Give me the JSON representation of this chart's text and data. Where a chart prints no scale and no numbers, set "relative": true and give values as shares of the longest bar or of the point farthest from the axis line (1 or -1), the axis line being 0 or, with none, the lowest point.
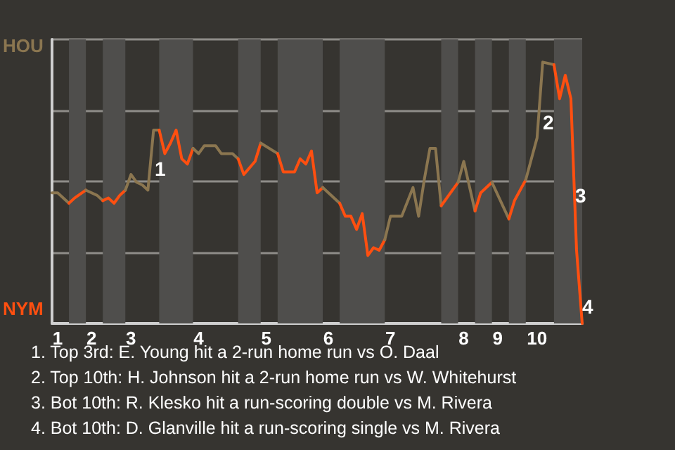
{
  "chart_data": {
    "type": "line",
    "relative": true,
    "categories": [
      null,
      "1",
      null,
      null,
      null,
      null,
      null,
      "2",
      null,
      null,
      null,
      null,
      null,
      null,
      "3",
      null,
      null,
      null,
      null,
      null,
      null,
      null,
      null,
      null,
      null,
      null,
      "4",
      null,
      null,
      null,
      null,
      null,
      null,
      null,
      null,
      null,
      null,
      null,
      "5",
      null,
      null,
      null,
      null,
      null,
      null,
      null,
      null,
      null,
      null,
      "6",
      null,
      null,
      null,
      null,
      null,
      null,
      null,
      null,
      null,
      null,
      "7",
      null,
      null,
      null,
      null,
      null,
      null,
      null,
      null,
      null,
      null,
      null,
      null,
      "8",
      null,
      null,
      null,
      null,
      null,
      "9",
      null,
      null,
      null,
      null,
      null,
      null,
      "10",
      null,
      null,
      null,
      null,
      null,
      null,
      null,
      null
    ],
    "grid": "y",
    "marker": "none",
    "series": [
      {
        "color": "#8b7650",
        "values": [
          0.5,
          0.5,
          null,
          0.46,
          null,
          null,
          null,
          null,
          null,
          null,
          null,
          null,
          null,
          null,
          null,
          null,
          null,
          null,
          null,
          null,
          null,
          null,
          null,
          null,
          null,
          null,
          null,
          null,
          null,
          null,
          null,
          null,
          null,
          null,
          null,
          null,
          null,
          null,
          null,
          null,
          null,
          null,
          null,
          null,
          null,
          null,
          null,
          null,
          null,
          null,
          null,
          null,
          null,
          null,
          null,
          null,
          null,
          null,
          null,
          null,
          null,
          null,
          null,
          null,
          null,
          null,
          null,
          null,
          null,
          null,
          null,
          null,
          null,
          null,
          null,
          null,
          null,
          null,
          null,
          null,
          null,
          null,
          null,
          null,
          null,
          null,
          null,
          null,
          null,
          null,
          null,
          null,
          null,
          null,
          null
        ]
      },
      {
        "color": "#ff4f10",
        "values": [
          null,
          null,
          null,
          0.46,
          0.48,
          null,
          0.51,
          null,
          null,
          null,
          null,
          null,
          null,
          null,
          null,
          null,
          null,
          null,
          null,
          null,
          null,
          null,
          null,
          null,
          null,
          null,
          null,
          null,
          null,
          null,
          null,
          null,
          null,
          null,
          null,
          null,
          null,
          null,
          null,
          null,
          null,
          null,
          null,
          null,
          null,
          null,
          null,
          null,
          null,
          null,
          null,
          null,
          null,
          null,
          null,
          null,
          null,
          null,
          null,
          null,
          null,
          null,
          null,
          null,
          null,
          null,
          null,
          null,
          null,
          null,
          null,
          null,
          null,
          null,
          null,
          null,
          null,
          null,
          null,
          null,
          null,
          null,
          null,
          null,
          null,
          null,
          null,
          null,
          null,
          null,
          null,
          null,
          null,
          null,
          null
        ]
      },
      {
        "color": "#8b7650",
        "values": [
          null,
          null,
          null,
          null,
          null,
          null,
          0.51,
          null,
          0.49,
          0.47,
          null,
          null,
          null,
          null,
          null,
          null,
          null,
          null,
          null,
          null,
          null,
          null,
          null,
          null,
          null,
          null,
          null,
          null,
          null,
          null,
          null,
          null,
          null,
          null,
          null,
          null,
          null,
          null,
          null,
          null,
          null,
          null,
          null,
          null,
          null,
          null,
          null,
          null,
          null,
          null,
          null,
          null,
          null,
          null,
          null,
          null,
          null,
          null,
          null,
          null,
          null,
          null,
          null,
          null,
          null,
          null,
          null,
          null,
          null,
          null,
          null,
          null,
          null,
          null,
          null,
          null,
          null,
          null,
          null,
          null,
          null,
          null,
          null,
          null,
          null,
          null,
          null,
          null,
          null,
          null,
          null,
          null,
          null,
          null,
          null
        ]
      },
      {
        "color": "#ff4f10",
        "values": [
          null,
          null,
          null,
          null,
          null,
          null,
          null,
          null,
          null,
          0.47,
          0.48,
          0.46,
          0.49,
          0.51,
          null,
          null,
          null,
          null,
          null,
          null,
          null,
          null,
          null,
          null,
          null,
          null,
          null,
          null,
          null,
          null,
          null,
          null,
          null,
          null,
          null,
          null,
          null,
          null,
          null,
          null,
          null,
          null,
          null,
          null,
          null,
          null,
          null,
          null,
          null,
          null,
          null,
          null,
          null,
          null,
          null,
          null,
          null,
          null,
          null,
          null,
          null,
          null,
          null,
          null,
          null,
          null,
          null,
          null,
          null,
          null,
          null,
          null,
          null,
          null,
          null,
          null,
          null,
          null,
          null,
          null,
          null,
          null,
          null,
          null,
          null,
          null,
          null,
          null,
          null,
          null,
          null,
          null,
          null,
          null,
          null
        ]
      },
      {
        "color": "#8b7650",
        "values": [
          null,
          null,
          null,
          null,
          null,
          null,
          null,
          null,
          null,
          null,
          null,
          null,
          null,
          0.51,
          0.57,
          0.54,
          0.53,
          0.51,
          0.74,
          0.74,
          null,
          null,
          null,
          null,
          null,
          null,
          null,
          null,
          null,
          null,
          null,
          null,
          null,
          null,
          null,
          null,
          null,
          null,
          null,
          null,
          null,
          null,
          null,
          null,
          null,
          null,
          null,
          null,
          null,
          null,
          null,
          null,
          null,
          null,
          null,
          null,
          null,
          null,
          null,
          null,
          null,
          null,
          null,
          null,
          null,
          null,
          null,
          null,
          null,
          null,
          null,
          null,
          null,
          null,
          null,
          null,
          null,
          null,
          null,
          null,
          null,
          null,
          null,
          null,
          null,
          null,
          null,
          null,
          null,
          null,
          null,
          null,
          null,
          null,
          null
        ]
      },
      {
        "color": "#ff4f10",
        "values": [
          null,
          null,
          null,
          null,
          null,
          null,
          null,
          null,
          null,
          null,
          null,
          null,
          null,
          null,
          null,
          null,
          null,
          null,
          null,
          0.74,
          0.65,
          0.69,
          0.74,
          0.63,
          0.61,
          0.67,
          null,
          null,
          null,
          null,
          null,
          null,
          null,
          null,
          null,
          null,
          null,
          null,
          null,
          null,
          null,
          null,
          null,
          null,
          null,
          null,
          null,
          null,
          null,
          null,
          null,
          null,
          null,
          null,
          null,
          null,
          null,
          null,
          null,
          null,
          null,
          null,
          null,
          null,
          null,
          null,
          null,
          null,
          null,
          null,
          null,
          null,
          null,
          null,
          null,
          null,
          null,
          null,
          null,
          null,
          null,
          null,
          null,
          null,
          null,
          null,
          null,
          null,
          null,
          null,
          null,
          null,
          null,
          null,
          null
        ]
      },
      {
        "color": "#8b7650",
        "values": [
          null,
          null,
          null,
          null,
          null,
          null,
          null,
          null,
          null,
          null,
          null,
          null,
          null,
          null,
          null,
          null,
          null,
          null,
          null,
          null,
          null,
          null,
          null,
          null,
          null,
          0.67,
          0.65,
          0.68,
          null,
          0.68,
          0.65,
          null,
          0.65,
          0.63,
          null,
          null,
          null,
          null,
          null,
          null,
          null,
          null,
          null,
          null,
          null,
          null,
          null,
          null,
          null,
          null,
          null,
          null,
          null,
          null,
          null,
          null,
          null,
          null,
          null,
          null,
          null,
          null,
          null,
          null,
          null,
          null,
          null,
          null,
          null,
          null,
          null,
          null,
          null,
          null,
          null,
          null,
          null,
          null,
          null,
          null,
          null,
          null,
          null,
          null,
          null,
          null,
          null,
          null,
          null,
          null,
          null,
          null,
          null,
          null,
          null
        ]
      },
      {
        "color": "#ff4f10",
        "values": [
          null,
          null,
          null,
          null,
          null,
          null,
          null,
          null,
          null,
          null,
          null,
          null,
          null,
          null,
          null,
          null,
          null,
          null,
          null,
          null,
          null,
          null,
          null,
          null,
          null,
          null,
          null,
          null,
          null,
          null,
          null,
          null,
          null,
          0.63,
          0.57,
          null,
          0.62,
          0.69,
          null,
          null,
          null,
          null,
          null,
          null,
          null,
          null,
          null,
          null,
          null,
          null,
          null,
          null,
          null,
          null,
          null,
          null,
          null,
          null,
          null,
          null,
          null,
          null,
          null,
          null,
          null,
          null,
          null,
          null,
          null,
          null,
          null,
          null,
          null,
          null,
          null,
          null,
          null,
          null,
          null,
          null,
          null,
          null,
          null,
          null,
          null,
          null,
          null,
          null,
          null,
          null,
          null,
          null,
          null,
          null,
          null
        ]
      },
      {
        "color": "#8b7650",
        "values": [
          null,
          null,
          null,
          null,
          null,
          null,
          null,
          null,
          null,
          null,
          null,
          null,
          null,
          null,
          null,
          null,
          null,
          null,
          null,
          null,
          null,
          null,
          null,
          null,
          null,
          null,
          null,
          null,
          null,
          null,
          null,
          null,
          null,
          null,
          null,
          null,
          null,
          0.69,
          null,
          null,
          0.65,
          null,
          null,
          null,
          null,
          null,
          null,
          null,
          null,
          null,
          null,
          null,
          null,
          null,
          null,
          null,
          null,
          null,
          null,
          null,
          null,
          null,
          null,
          null,
          null,
          null,
          null,
          null,
          null,
          null,
          null,
          null,
          null,
          null,
          null,
          null,
          null,
          null,
          null,
          null,
          null,
          null,
          null,
          null,
          null,
          null,
          null,
          null,
          null,
          null,
          null,
          null,
          null,
          null,
          null
        ]
      },
      {
        "color": "#ff4f10",
        "values": [
          null,
          null,
          null,
          null,
          null,
          null,
          null,
          null,
          null,
          null,
          null,
          null,
          null,
          null,
          null,
          null,
          null,
          null,
          null,
          null,
          null,
          null,
          null,
          null,
          null,
          null,
          null,
          null,
          null,
          null,
          null,
          null,
          null,
          null,
          null,
          null,
          null,
          null,
          null,
          null,
          0.65,
          0.58,
          null,
          0.58,
          0.63,
          0.61,
          0.66,
          0.5,
          0.52,
          null,
          null,
          null,
          null,
          null,
          null,
          null,
          null,
          null,
          null,
          null,
          null,
          null,
          null,
          null,
          null,
          null,
          null,
          null,
          null,
          null,
          null,
          null,
          null,
          null,
          null,
          null,
          null,
          null,
          null,
          null,
          null,
          null,
          null,
          null,
          null,
          null,
          null,
          null,
          null,
          null,
          null,
          null,
          null,
          null,
          null
        ]
      },
      {
        "color": "#8b7650",
        "values": [
          null,
          null,
          null,
          null,
          null,
          null,
          null,
          null,
          null,
          null,
          null,
          null,
          null,
          null,
          null,
          null,
          null,
          null,
          null,
          null,
          null,
          null,
          null,
          null,
          null,
          null,
          null,
          null,
          null,
          null,
          null,
          null,
          null,
          null,
          null,
          null,
          null,
          null,
          null,
          null,
          null,
          null,
          null,
          null,
          null,
          null,
          null,
          null,
          0.52,
          null,
          null,
          0.46,
          null,
          null,
          null,
          null,
          null,
          null,
          null,
          null,
          null,
          null,
          null,
          null,
          null,
          null,
          null,
          null,
          null,
          null,
          null,
          null,
          null,
          null,
          null,
          null,
          null,
          null,
          null,
          null,
          null,
          null,
          null,
          null,
          null,
          null,
          null,
          null,
          null,
          null,
          null,
          null,
          null,
          null,
          null
        ]
      },
      {
        "color": "#ff4f10",
        "values": [
          null,
          null,
          null,
          null,
          null,
          null,
          null,
          null,
          null,
          null,
          null,
          null,
          null,
          null,
          null,
          null,
          null,
          null,
          null,
          null,
          null,
          null,
          null,
          null,
          null,
          null,
          null,
          null,
          null,
          null,
          null,
          null,
          null,
          null,
          null,
          null,
          null,
          null,
          null,
          null,
          null,
          null,
          null,
          null,
          null,
          null,
          null,
          null,
          null,
          null,
          null,
          0.46,
          0.41,
          0.41,
          0.36,
          0.42,
          0.26,
          0.29,
          0.28,
          0.32,
          null,
          null,
          null,
          null,
          null,
          null,
          null,
          null,
          null,
          null,
          null,
          null,
          null,
          null,
          null,
          null,
          null,
          null,
          null,
          null,
          null,
          null,
          null,
          null,
          null,
          null,
          null,
          null,
          null,
          null,
          null,
          null,
          null,
          null,
          null
        ]
      },
      {
        "color": "#8b7650",
        "values": [
          null,
          null,
          null,
          null,
          null,
          null,
          null,
          null,
          null,
          null,
          null,
          null,
          null,
          null,
          null,
          null,
          null,
          null,
          null,
          null,
          null,
          null,
          null,
          null,
          null,
          null,
          null,
          null,
          null,
          null,
          null,
          null,
          null,
          null,
          null,
          null,
          null,
          null,
          null,
          null,
          null,
          null,
          null,
          null,
          null,
          null,
          null,
          null,
          null,
          null,
          null,
          null,
          null,
          null,
          null,
          null,
          null,
          null,
          null,
          0.32,
          0.41,
          null,
          0.41,
          null,
          0.52,
          0.41,
          0.55,
          0.67,
          0.67,
          0.45,
          null,
          null,
          null,
          null,
          null,
          null,
          null,
          null,
          null,
          null,
          null,
          null,
          null,
          null,
          null,
          null,
          null,
          null,
          null,
          null,
          null,
          null,
          null,
          null,
          null
        ]
      },
      {
        "color": "#ff4f10",
        "values": [
          null,
          null,
          null,
          null,
          null,
          null,
          null,
          null,
          null,
          null,
          null,
          null,
          null,
          null,
          null,
          null,
          null,
          null,
          null,
          null,
          null,
          null,
          null,
          null,
          null,
          null,
          null,
          null,
          null,
          null,
          null,
          null,
          null,
          null,
          null,
          null,
          null,
          null,
          null,
          null,
          null,
          null,
          null,
          null,
          null,
          null,
          null,
          null,
          null,
          null,
          null,
          null,
          null,
          null,
          null,
          null,
          null,
          null,
          null,
          null,
          null,
          null,
          null,
          null,
          null,
          null,
          null,
          null,
          null,
          0.45,
          null,
          0.51,
          0.54,
          null,
          null,
          null,
          null,
          null,
          null,
          null,
          null,
          null,
          null,
          null,
          null,
          null,
          null,
          null,
          null,
          null,
          null,
          null,
          null,
          null,
          null
        ]
      },
      {
        "color": "#8b7650",
        "values": [
          null,
          null,
          null,
          null,
          null,
          null,
          null,
          null,
          null,
          null,
          null,
          null,
          null,
          null,
          null,
          null,
          null,
          null,
          null,
          null,
          null,
          null,
          null,
          null,
          null,
          null,
          null,
          null,
          null,
          null,
          null,
          null,
          null,
          null,
          null,
          null,
          null,
          null,
          null,
          null,
          null,
          null,
          null,
          null,
          null,
          null,
          null,
          null,
          null,
          null,
          null,
          null,
          null,
          null,
          null,
          null,
          null,
          null,
          null,
          null,
          null,
          null,
          null,
          null,
          null,
          null,
          null,
          null,
          null,
          null,
          null,
          null,
          0.54,
          0.62,
          null,
          0.43,
          null,
          null,
          null,
          null,
          null,
          null,
          null,
          null,
          null,
          null,
          null,
          null,
          null,
          null,
          null,
          null,
          null,
          null,
          null
        ]
      },
      {
        "color": "#ff4f10",
        "values": [
          null,
          null,
          null,
          null,
          null,
          null,
          null,
          null,
          null,
          null,
          null,
          null,
          null,
          null,
          null,
          null,
          null,
          null,
          null,
          null,
          null,
          null,
          null,
          null,
          null,
          null,
          null,
          null,
          null,
          null,
          null,
          null,
          null,
          null,
          null,
          null,
          null,
          null,
          null,
          null,
          null,
          null,
          null,
          null,
          null,
          null,
          null,
          null,
          null,
          null,
          null,
          null,
          null,
          null,
          null,
          null,
          null,
          null,
          null,
          null,
          null,
          null,
          null,
          null,
          null,
          null,
          null,
          null,
          null,
          null,
          null,
          null,
          null,
          null,
          null,
          0.43,
          0.5,
          null,
          0.54,
          null,
          null,
          null,
          null,
          null,
          null,
          null,
          null,
          null,
          null,
          null,
          null,
          null,
          null,
          null,
          null
        ]
      },
      {
        "color": "#8b7650",
        "values": [
          null,
          null,
          null,
          null,
          null,
          null,
          null,
          null,
          null,
          null,
          null,
          null,
          null,
          null,
          null,
          null,
          null,
          null,
          null,
          null,
          null,
          null,
          null,
          null,
          null,
          null,
          null,
          null,
          null,
          null,
          null,
          null,
          null,
          null,
          null,
          null,
          null,
          null,
          null,
          null,
          null,
          null,
          null,
          null,
          null,
          null,
          null,
          null,
          null,
          null,
          null,
          null,
          null,
          null,
          null,
          null,
          null,
          null,
          null,
          null,
          null,
          null,
          null,
          null,
          null,
          null,
          null,
          null,
          null,
          null,
          null,
          null,
          null,
          null,
          null,
          null,
          null,
          null,
          0.54,
          null,
          null,
          0.4,
          null,
          null,
          null,
          null,
          null,
          null,
          null,
          null,
          null,
          null,
          null,
          null,
          null
        ]
      },
      {
        "color": "#ff4f10",
        "values": [
          null,
          null,
          null,
          null,
          null,
          null,
          null,
          null,
          null,
          null,
          null,
          null,
          null,
          null,
          null,
          null,
          null,
          null,
          null,
          null,
          null,
          null,
          null,
          null,
          null,
          null,
          null,
          null,
          null,
          null,
          null,
          null,
          null,
          null,
          null,
          null,
          null,
          null,
          null,
          null,
          null,
          null,
          null,
          null,
          null,
          null,
          null,
          null,
          null,
          null,
          null,
          null,
          null,
          null,
          null,
          null,
          null,
          null,
          null,
          null,
          null,
          null,
          null,
          null,
          null,
          null,
          null,
          null,
          null,
          null,
          null,
          null,
          null,
          null,
          null,
          null,
          null,
          null,
          null,
          null,
          null,
          0.4,
          0.47,
          null,
          0.55,
          null,
          null,
          null,
          null,
          null,
          null,
          null,
          null,
          null,
          null
        ]
      },
      {
        "color": "#8b7650",
        "values": [
          null,
          null,
          null,
          null,
          null,
          null,
          null,
          null,
          null,
          null,
          null,
          null,
          null,
          null,
          null,
          null,
          null,
          null,
          null,
          null,
          null,
          null,
          null,
          null,
          null,
          null,
          null,
          null,
          null,
          null,
          null,
          null,
          null,
          null,
          null,
          null,
          null,
          null,
          null,
          null,
          null,
          null,
          null,
          null,
          null,
          null,
          null,
          null,
          null,
          null,
          null,
          null,
          null,
          null,
          null,
          null,
          null,
          null,
          null,
          null,
          null,
          null,
          null,
          null,
          null,
          null,
          null,
          null,
          null,
          null,
          null,
          null,
          null,
          null,
          null,
          null,
          null,
          null,
          null,
          null,
          null,
          null,
          null,
          null,
          0.55,
          0.63,
          0.71,
          1,
          null,
          0.99,
          null,
          null,
          null,
          null,
          null
        ]
      },
      {
        "color": "#ff4f10",
        "values": [
          null,
          null,
          null,
          null,
          null,
          null,
          null,
          null,
          null,
          null,
          null,
          null,
          null,
          null,
          null,
          null,
          null,
          null,
          null,
          null,
          null,
          null,
          null,
          null,
          null,
          null,
          null,
          null,
          null,
          null,
          null,
          null,
          null,
          null,
          null,
          null,
          null,
          null,
          null,
          null,
          null,
          null,
          null,
          null,
          null,
          null,
          null,
          null,
          null,
          null,
          null,
          null,
          null,
          null,
          null,
          null,
          null,
          null,
          null,
          null,
          null,
          null,
          null,
          null,
          null,
          null,
          null,
          null,
          null,
          null,
          null,
          null,
          null,
          null,
          null,
          null,
          null,
          null,
          null,
          null,
          null,
          null,
          null,
          null,
          null,
          null,
          null,
          null,
          null,
          0.99,
          0.86,
          0.95,
          0.86,
          0.28,
          0
        ]
      }
    ],
    "annotations": [
      "1",
      "2",
      "3",
      "4",
      "HOU",
      "NYM",
      "1. Top 3rd: E. Young hit a 2-run home run vs O. Daal",
      "2. Top 10th: H. Johnson hit a 2-run home run vs W. Whitehurst",
      "3. Bot 10th: R. Klesko hit a run-scoring double vs M. Rivera",
      "4. Bot 10th: D. Glanville hit a run-scoring single vs M. Rivera"
    ]
  }
}
